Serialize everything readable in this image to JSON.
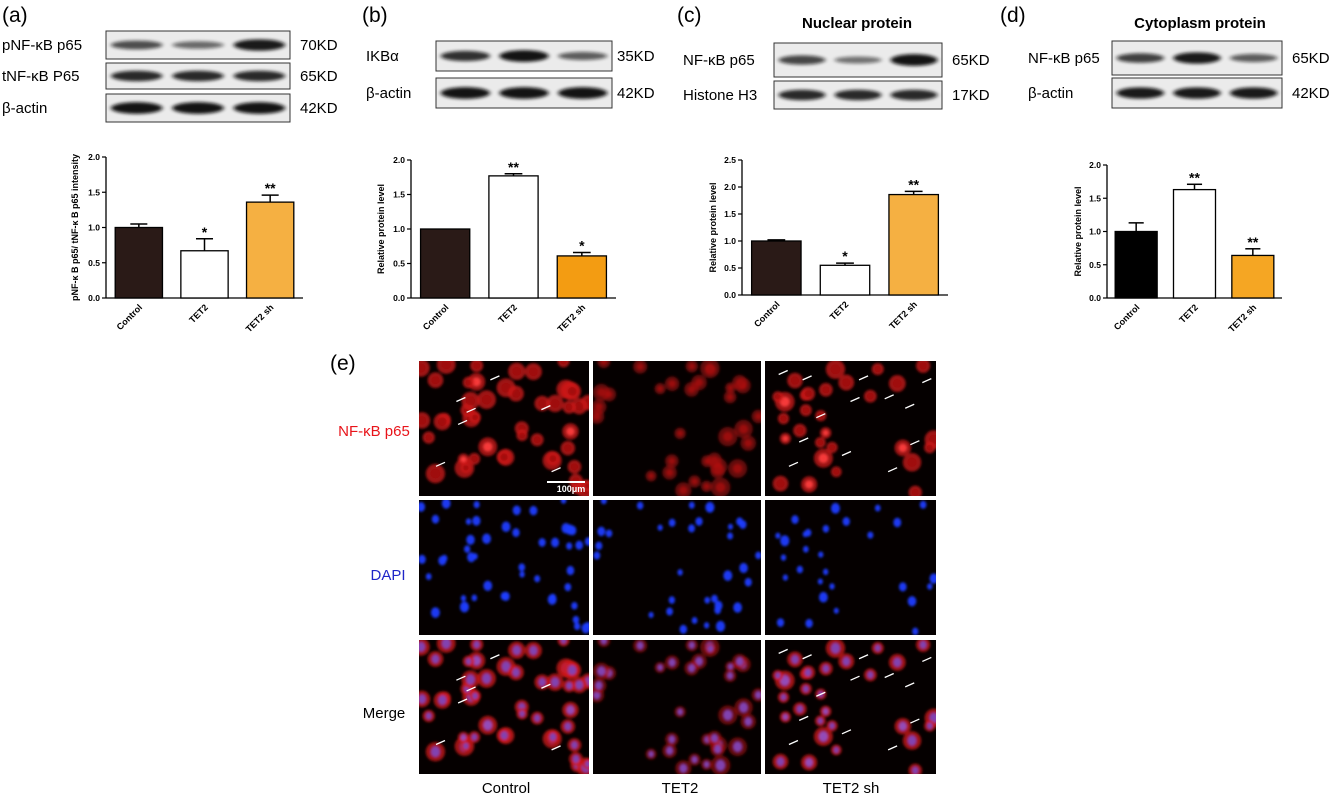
{
  "panels": {
    "a": {
      "letter": "(a)",
      "blots": [
        {
          "label": "pNF-κB p65",
          "kd": "70KD",
          "bands": [
            0.55,
            0.35,
            0.9
          ]
        },
        {
          "label": "tNF-κB P65",
          "kd": "65KD",
          "bands": [
            0.8,
            0.8,
            0.8
          ]
        },
        {
          "label": "β-actin",
          "kd": "42KD",
          "bands": [
            0.95,
            0.95,
            0.95
          ]
        }
      ]
    },
    "b": {
      "letter": "(b)",
      "blots": [
        {
          "label": "IKBα",
          "kd": "35KD",
          "bands": [
            0.75,
            0.95,
            0.45
          ]
        },
        {
          "label": "β-actin",
          "kd": "42KD",
          "bands": [
            0.95,
            0.95,
            0.95
          ]
        }
      ]
    },
    "c": {
      "letter": "(c)",
      "title": "Nuclear protein",
      "blots": [
        {
          "label": "NF-κB p65",
          "kd": "65KD",
          "bands": [
            0.6,
            0.3,
            0.95
          ]
        },
        {
          "label": "Histone H3",
          "kd": "17KD",
          "bands": [
            0.8,
            0.8,
            0.8
          ]
        }
      ]
    },
    "d": {
      "letter": "(d)",
      "title": "Cytoplasm protein",
      "blots": [
        {
          "label": "NF-κB p65",
          "kd": "65KD",
          "bands": [
            0.65,
            0.9,
            0.45
          ]
        },
        {
          "label": "β-actin",
          "kd": "42KD",
          "bands": [
            0.9,
            0.9,
            0.9
          ]
        }
      ]
    },
    "e": {
      "letter": "(e)",
      "rows": [
        "NF-κB p65",
        "DAPI",
        "Merge"
      ],
      "row_colors": [
        "#e8141a",
        "#1f25c8",
        "#000000"
      ],
      "cols": [
        "Control",
        "TET2",
        "TET2 sh"
      ],
      "scale_bar": "100μm"
    }
  },
  "chart_data": [
    {
      "type": "bar",
      "panel": "a",
      "categories": [
        "Control",
        "TET2",
        "TET2 sh"
      ],
      "values": [
        1.0,
        0.67,
        1.36
      ],
      "errors": [
        0.05,
        0.17,
        0.1
      ],
      "significance": [
        "",
        "*",
        "**"
      ],
      "colors": [
        "#2a1a17",
        "#ffffff",
        "#f5b042"
      ],
      "ylabel": "pNF-κ B p65/ tNF-κ B p65 intensity",
      "ylim": [
        0,
        2.0
      ],
      "yticks": [
        "0.0",
        "0.5",
        "1.0",
        "1.5",
        "2.0"
      ]
    },
    {
      "type": "bar",
      "panel": "b",
      "categories": [
        "Control",
        "TET2",
        "TET2 sh"
      ],
      "values": [
        1.0,
        1.77,
        0.61
      ],
      "errors": [
        0.0,
        0.03,
        0.05
      ],
      "significance": [
        "",
        "**",
        "*"
      ],
      "colors": [
        "#2a1a17",
        "#ffffff",
        "#f39c12"
      ],
      "ylabel": "Relative protein level",
      "ylim": [
        0,
        2.0
      ],
      "yticks": [
        "0.0",
        "0.5",
        "1.0",
        "1.5",
        "2.0"
      ]
    },
    {
      "type": "bar",
      "panel": "c",
      "categories": [
        "Control",
        "TET2",
        "TET2 sh"
      ],
      "values": [
        1.0,
        0.55,
        1.86
      ],
      "errors": [
        0.02,
        0.04,
        0.06
      ],
      "significance": [
        "",
        "*",
        "**"
      ],
      "colors": [
        "#2a1a17",
        "#ffffff",
        "#f5b042"
      ],
      "ylabel": "Relative protein level",
      "ylim": [
        0,
        2.5
      ],
      "yticks": [
        "0.0",
        "0.5",
        "1.0",
        "1.5",
        "2.0",
        "2.5"
      ]
    },
    {
      "type": "bar",
      "panel": "d",
      "categories": [
        "Control",
        "TET2",
        "TET2 sh"
      ],
      "values": [
        1.0,
        1.63,
        0.64
      ],
      "errors": [
        0.13,
        0.08,
        0.1
      ],
      "significance": [
        "",
        "**",
        "**"
      ],
      "colors": [
        "#000000",
        "#ffffff",
        "#f5a623"
      ],
      "ylabel": "Relative protein level",
      "ylim": [
        0,
        2.0
      ],
      "yticks": [
        "0.0",
        "0.5",
        "1.0",
        "1.5",
        "2.0"
      ]
    }
  ]
}
